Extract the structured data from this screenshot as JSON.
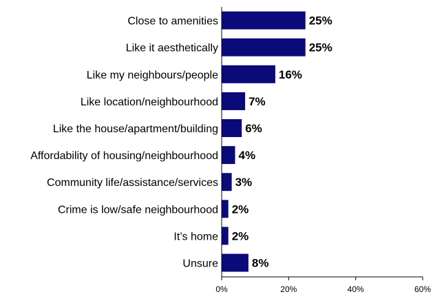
{
  "chart_data": {
    "type": "bar",
    "orientation": "horizontal",
    "categories": [
      "Close to amenities",
      "Like it aesthetically",
      "Like my neighbours/people",
      "Like location/neighbourhood",
      "Like the house/apartment/building",
      "Affordability of housing/neighbourhood",
      "Community life/assistance/services",
      "Crime is low/safe neighbourhood",
      "It’s home",
      "Unsure"
    ],
    "values": [
      25,
      25,
      16,
      7,
      6,
      4,
      3,
      2,
      2,
      8
    ],
    "value_labels": [
      "25%",
      "25%",
      "16%",
      "7%",
      "6%",
      "4%",
      "3%",
      "2%",
      "2%",
      "8%"
    ],
    "xlim": [
      0,
      60
    ],
    "x_ticks": [
      0,
      20,
      40,
      60
    ],
    "x_tick_labels": [
      "0%",
      "20%",
      "40%",
      "60%"
    ],
    "bar_color": "#0a0a7a",
    "grid": false,
    "legend": "none"
  }
}
